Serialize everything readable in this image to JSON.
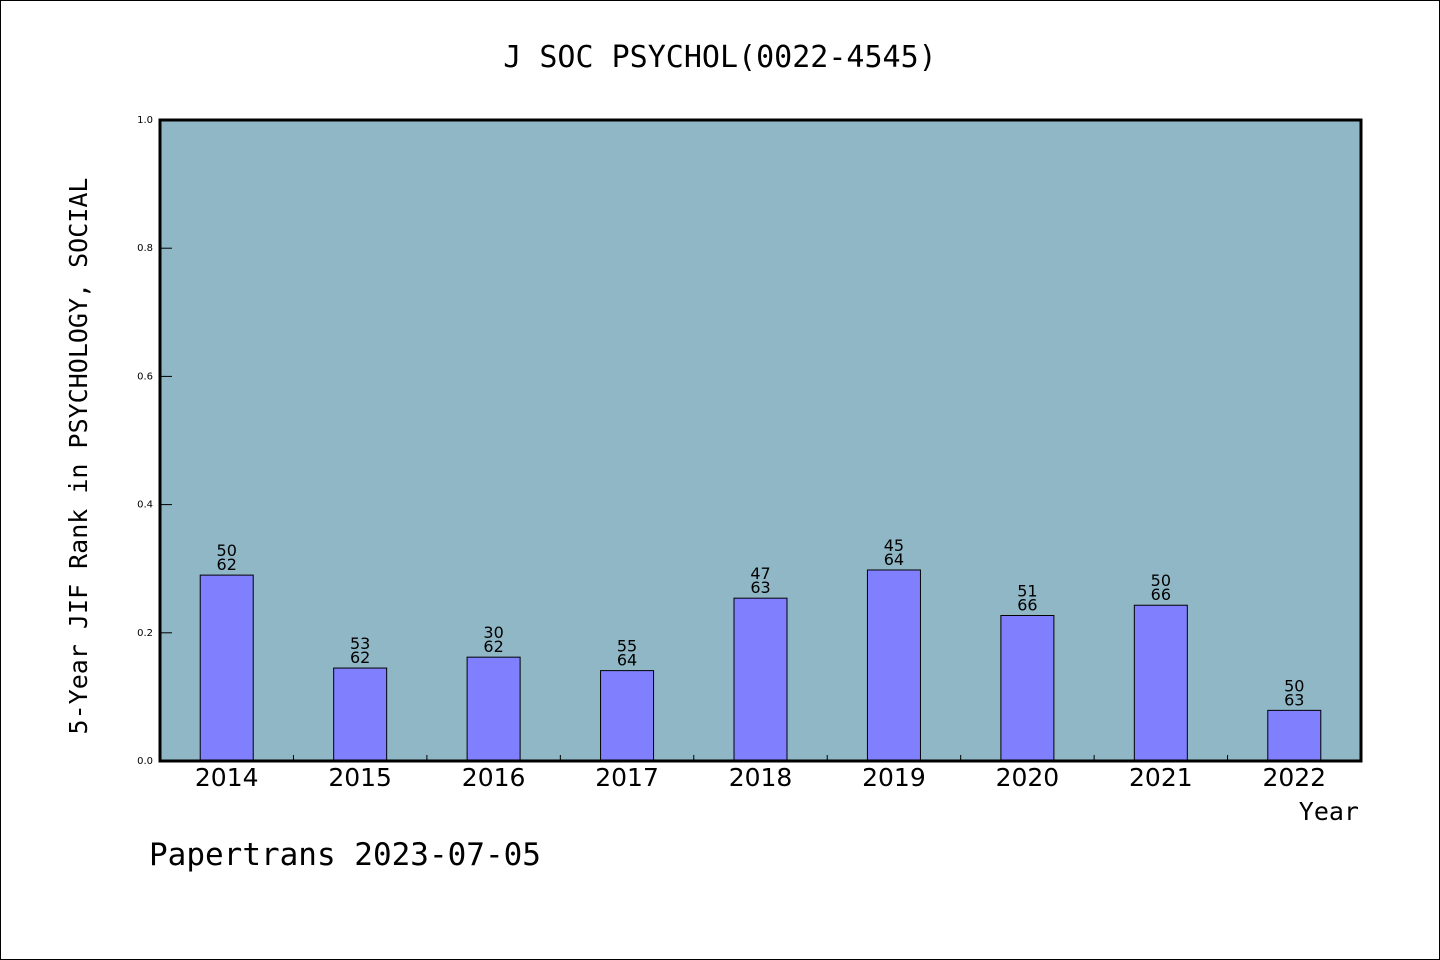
{
  "chart_data": {
    "type": "bar",
    "title": "J SOC PSYCHOL(0022-4545)",
    "xlabel": "Year",
    "ylabel": "5-Year JIF Rank in PSYCHOLOGY, SOCIAL",
    "ylim": [
      0,
      1.0
    ],
    "yticks": [
      "0.0",
      "0.2",
      "0.4",
      "0.6",
      "0.8",
      "1.0"
    ],
    "categories": [
      "2014",
      "2015",
      "2016",
      "2017",
      "2018",
      "2019",
      "2020",
      "2021",
      "2022"
    ],
    "values": [
      0.29,
      0.145,
      0.162,
      0.141,
      0.254,
      0.298,
      0.227,
      0.243,
      0.079
    ],
    "rank_labels": [
      {
        "rank": "50",
        "total": "62"
      },
      {
        "rank": "53",
        "total": "62"
      },
      {
        "rank": "30",
        "total": "62"
      },
      {
        "rank": "55",
        "total": "64"
      },
      {
        "rank": "47",
        "total": "63"
      },
      {
        "rank": "45",
        "total": "64"
      },
      {
        "rank": "51",
        "total": "66"
      },
      {
        "rank": "50",
        "total": "66"
      },
      {
        "rank": "50",
        "total": "63"
      }
    ],
    "grid": false,
    "colors": {
      "plot_background": "#8fb7c5",
      "bar_fill": "#8080ff",
      "bar_stroke": "#000000"
    }
  },
  "footer": {
    "text": "Papertrans 2023-07-05"
  }
}
